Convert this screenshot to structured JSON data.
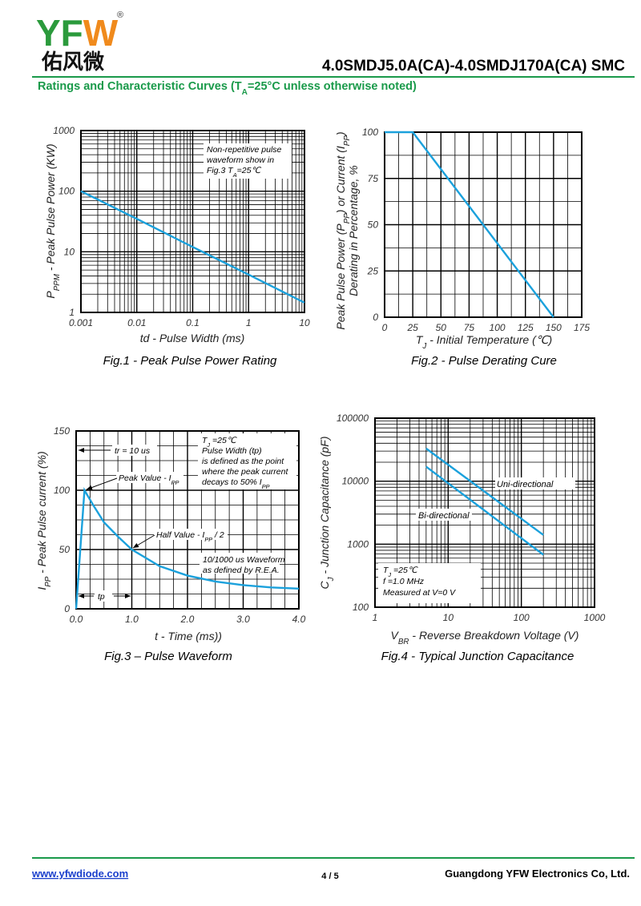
{
  "header": {
    "logo": [
      "YF",
      "W"
    ],
    "registered": "®",
    "logo_cn": "佑风微",
    "title": "4.0SMDJ5.0A(CA)-4.0SMDJ170A(CA)  SMC",
    "subtitle": [
      {
        "text": "Ratings and Characteristic Curves (T"
      },
      {
        "text": "A",
        "sub": true
      },
      {
        "text": "=25°C unless otherwise noted)"
      }
    ]
  },
  "chart_data": [
    {
      "type": "line",
      "caption": "Fig.1 - Peak Pulse Power Rating",
      "xlabel": [
        {
          "text": "td - Pulse Width (ms)"
        }
      ],
      "ylabel": [
        [
          {
            "text": "P"
          },
          {
            "text": "PPM",
            "sub": true
          },
          {
            "text": " - Peak Pulse Power  (KW)"
          }
        ]
      ],
      "x": [
        0.001,
        0.01,
        0.1,
        1,
        10
      ],
      "values": [
        100,
        35,
        12,
        4.2,
        1.45
      ],
      "color": "#1ba1dc",
      "xscale": "log",
      "yscale": "log",
      "xlim": [
        0.001,
        10
      ],
      "ylim": [
        1,
        1000
      ],
      "xticks": [
        0.001,
        0.01,
        0.1,
        1,
        10
      ],
      "yticks": [
        1,
        10,
        100,
        1000
      ],
      "grid": true,
      "annotations": [
        [
          {
            "text": "Non-repetitive pulse"
          }
        ],
        [
          {
            "text": "waveform show in"
          }
        ],
        [
          {
            "text": "Fig.3  T"
          },
          {
            "text": "A",
            "sub": true
          },
          {
            "text": "=25℃"
          }
        ]
      ]
    },
    {
      "type": "line",
      "caption": "Fig.2 - Pulse Derating Cure",
      "xlabel": [
        {
          "text": "T"
        },
        {
          "text": "J",
          "sub": true
        },
        {
          "text": " - Initial Temperature (℃)"
        }
      ],
      "ylabel": [
        [
          {
            "text": "Peak Pulse Power (P"
          },
          {
            "text": "PP",
            "sub": true
          },
          {
            "text": ") or Current (I"
          },
          {
            "text": "PP",
            "sub": true
          },
          {
            "text": ")"
          }
        ],
        [
          {
            "text": "Derating in Percentage, %"
          }
        ]
      ],
      "x": [
        0,
        25,
        150
      ],
      "values": [
        100,
        100,
        0
      ],
      "color": "#1ba1dc",
      "xlim": [
        0,
        175
      ],
      "ylim": [
        0,
        100
      ],
      "xticks": [
        0,
        25,
        50,
        75,
        100,
        125,
        150,
        175
      ],
      "yticks": [
        0,
        25,
        50,
        75,
        100
      ],
      "grid": true,
      "minor_divisions": [
        2,
        2
      ],
      "annotations": []
    },
    {
      "type": "line",
      "caption": "Fig.3 – Pulse Waveform",
      "xlabel": [
        {
          "text": "t - Time (ms))"
        }
      ],
      "ylabel": [
        [
          {
            "text": "I"
          },
          {
            "text": "PP",
            "sub": true
          },
          {
            "text": " - Peak Pulse current (%)"
          }
        ]
      ],
      "x": [
        0,
        0.15,
        0.3,
        0.5,
        0.75,
        1.0,
        1.5,
        2.0,
        2.5,
        3.0,
        3.5,
        4.0
      ],
      "values": [
        0,
        100,
        88,
        73,
        61,
        50,
        36,
        28,
        23,
        20,
        18,
        17
      ],
      "color": "#1ba1dc",
      "xlim": [
        0,
        4
      ],
      "ylim": [
        0,
        150
      ],
      "xticks": [
        {
          "value": 0,
          "label": "0.0"
        },
        {
          "value": 1,
          "label": "1.0"
        },
        {
          "value": 2,
          "label": "2.0"
        },
        {
          "value": 3,
          "label": "3.0"
        },
        {
          "value": 4,
          "label": "4.0"
        }
      ],
      "yticks": [
        0,
        50,
        100,
        150
      ],
      "grid": true,
      "minor_divisions": [
        4,
        4
      ],
      "annotations": [
        [
          {
            "text": "tr = 10 us"
          }
        ],
        [
          {
            "text": "Peak Value - I"
          },
          {
            "text": "PP",
            "sub": true
          }
        ],
        [
          {
            "text": "Half Value - I"
          },
          {
            "text": "PP",
            "sub": true
          },
          {
            "text": " / 2"
          }
        ],
        [
          {
            "text": "10/1000 us Waveform"
          }
        ],
        [
          {
            "text": "as defined by R.E.A."
          }
        ],
        [
          {
            "text": "tp"
          }
        ],
        [
          {
            "text": "T"
          },
          {
            "text": "J",
            "sub": true
          },
          {
            "text": " =25℃"
          }
        ],
        [
          {
            "text": "Pulse Width (tp)"
          }
        ],
        [
          {
            "text": "is defined as the point"
          }
        ],
        [
          {
            "text": "where the peak current"
          }
        ],
        [
          {
            "text": "decays to 50% I"
          },
          {
            "text": "PP",
            "sub": true
          }
        ]
      ]
    },
    {
      "type": "line",
      "caption": "Fig.4 - Typical Junction Capacitance",
      "xlabel": [
        {
          "text": "V"
        },
        {
          "text": "BR",
          "sub": true
        },
        {
          "text": " - Reverse Breakdown Voltage (V)"
        }
      ],
      "ylabel": [
        [
          {
            "text": "C"
          },
          {
            "text": "J",
            "sub": true
          },
          {
            "text": " - Junction Capacitance (pF)"
          }
        ]
      ],
      "x": [
        5,
        200
      ],
      "series": [
        {
          "name": "Uni-directional",
          "color": "#1ba1dc",
          "values": [
            33000,
            1400
          ]
        },
        {
          "name": "Bi-directional",
          "color": "#1ba1dc",
          "values": [
            17000,
            680
          ]
        }
      ],
      "xscale": "log",
      "yscale": "log",
      "xlim": [
        1,
        1000
      ],
      "ylim": [
        100,
        100000
      ],
      "xticks": [
        1,
        10,
        100,
        1000
      ],
      "yticks": [
        100,
        1000,
        10000,
        100000
      ],
      "grid": true,
      "annotations": [
        [
          {
            "text": "T"
          },
          {
            "text": "J",
            "sub": true
          },
          {
            "text": " =25℃"
          }
        ],
        [
          {
            "text": "f =1.0 MHz"
          }
        ],
        [
          {
            "text": "Measured at V=0 V"
          }
        ]
      ]
    }
  ],
  "footer": {
    "website": "www.yfwdiode.com",
    "page": "4 / 5",
    "company": "Guangdong YFW Electronics Co, Ltd."
  }
}
